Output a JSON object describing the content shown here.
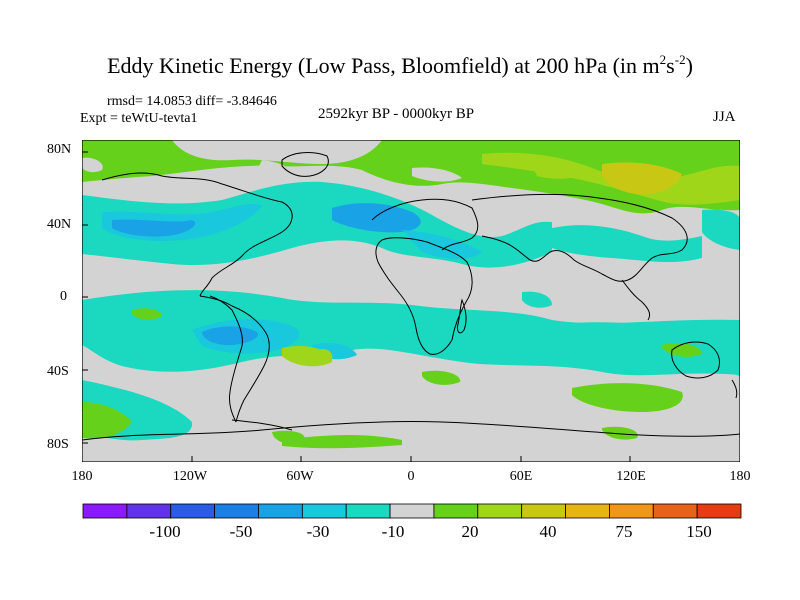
{
  "title": {
    "main": "Eddy Kinetic Energy (Low Pass, Bloomfield) at 200 hPa (in m",
    "unit_m_exp": "2",
    "unit_s": "s",
    "unit_s_exp": "-2",
    "close": ")"
  },
  "stats": "rmsd= 14.0853 diff= -3.84646",
  "experiment": "Expt = teWtU-tevta1",
  "period": "2592kyr BP - 0000kyr BP",
  "season": "JJA",
  "lat_labels": [
    "80N",
    "40N",
    "0",
    "40S",
    "80S"
  ],
  "lon_labels": [
    "180",
    "120W",
    "60W",
    "0",
    "60E",
    "120E",
    "180"
  ],
  "colorbar": {
    "labels": [
      "-100",
      "-50",
      "-30",
      "-10",
      "20",
      "40",
      "75",
      "150"
    ],
    "colors": [
      "#8c1aff",
      "#6033e6",
      "#2a5ce6",
      "#1a80e6",
      "#19a3e6",
      "#19c8dc",
      "#1ad9c0",
      "#d3d3d3",
      "#66d11a",
      "#a0d619",
      "#c8c814",
      "#e6b414",
      "#f0961a",
      "#e6641a",
      "#e63c14"
    ]
  },
  "map_colors": {
    "land_gray": "#d3d3d3",
    "cyan": "#1ad9c0",
    "teal_blue": "#19c8dc",
    "blue": "#19a3e6",
    "green": "#66d11a",
    "yellow_green": "#a0d619",
    "olive": "#c8c814"
  }
}
